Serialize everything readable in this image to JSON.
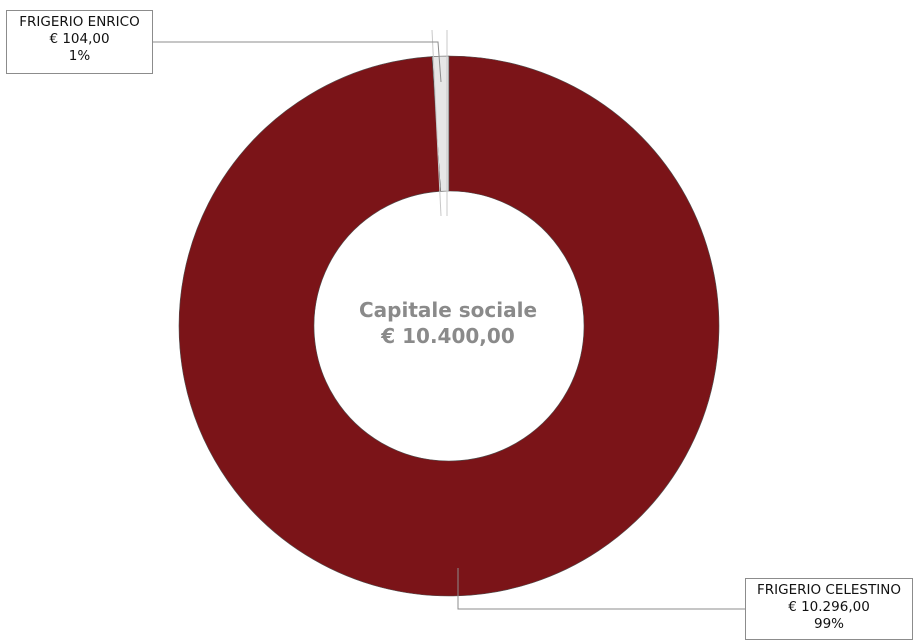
{
  "chart_data": {
    "type": "pie",
    "variant": "donut",
    "title": "",
    "center_title": "Capitale sociale",
    "center_value": "€ 10.400,00",
    "total": 10400,
    "legend": "none",
    "slices": [
      {
        "name": "FRIGERIO ENRICO",
        "value": 104,
        "value_label": "€ 104,00",
        "percent": 1,
        "percent_label": "1%",
        "color": "#e6e6e6"
      },
      {
        "name": "FRIGERIO CELESTINO",
        "value": 10296,
        "value_label": "€ 10.296,00",
        "percent": 99,
        "percent_label": "99%",
        "color": "#7b1418"
      }
    ]
  },
  "colors": {
    "background": "#ffffff",
    "leader_line": "#8c8c8c",
    "slice_border": "#4d4d4d",
    "center_text": "#8a8a8a"
  }
}
